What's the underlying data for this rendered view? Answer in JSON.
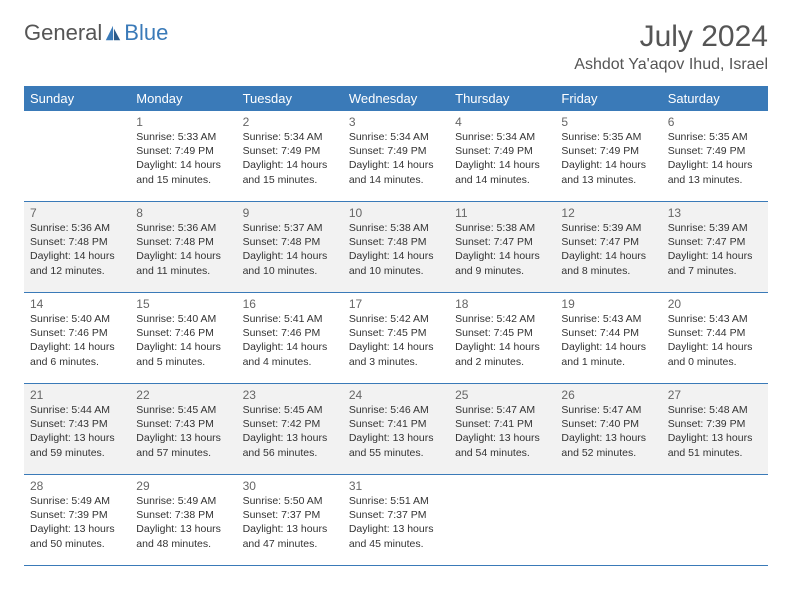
{
  "brand": {
    "general": "General",
    "blue": "Blue"
  },
  "title": "July 2024",
  "location": "Ashdot Ya'aqov Ihud, Israel",
  "theme": {
    "accent": "#3a7ab8",
    "header_text": "#ffffff",
    "body_text": "#333333",
    "muted_text": "#666666",
    "shaded_bg": "#f2f2f2",
    "border": "#3a7ab8"
  },
  "weekdays": [
    "Sunday",
    "Monday",
    "Tuesday",
    "Wednesday",
    "Thursday",
    "Friday",
    "Saturday"
  ],
  "weeks": [
    {
      "shaded": false,
      "days": [
        null,
        {
          "n": "1",
          "sunrise": "Sunrise: 5:33 AM",
          "sunset": "Sunset: 7:49 PM",
          "daylight": "Daylight: 14 hours and 15 minutes."
        },
        {
          "n": "2",
          "sunrise": "Sunrise: 5:34 AM",
          "sunset": "Sunset: 7:49 PM",
          "daylight": "Daylight: 14 hours and 15 minutes."
        },
        {
          "n": "3",
          "sunrise": "Sunrise: 5:34 AM",
          "sunset": "Sunset: 7:49 PM",
          "daylight": "Daylight: 14 hours and 14 minutes."
        },
        {
          "n": "4",
          "sunrise": "Sunrise: 5:34 AM",
          "sunset": "Sunset: 7:49 PM",
          "daylight": "Daylight: 14 hours and 14 minutes."
        },
        {
          "n": "5",
          "sunrise": "Sunrise: 5:35 AM",
          "sunset": "Sunset: 7:49 PM",
          "daylight": "Daylight: 14 hours and 13 minutes."
        },
        {
          "n": "6",
          "sunrise": "Sunrise: 5:35 AM",
          "sunset": "Sunset: 7:49 PM",
          "daylight": "Daylight: 14 hours and 13 minutes."
        }
      ]
    },
    {
      "shaded": true,
      "days": [
        {
          "n": "7",
          "sunrise": "Sunrise: 5:36 AM",
          "sunset": "Sunset: 7:48 PM",
          "daylight": "Daylight: 14 hours and 12 minutes."
        },
        {
          "n": "8",
          "sunrise": "Sunrise: 5:36 AM",
          "sunset": "Sunset: 7:48 PM",
          "daylight": "Daylight: 14 hours and 11 minutes."
        },
        {
          "n": "9",
          "sunrise": "Sunrise: 5:37 AM",
          "sunset": "Sunset: 7:48 PM",
          "daylight": "Daylight: 14 hours and 10 minutes."
        },
        {
          "n": "10",
          "sunrise": "Sunrise: 5:38 AM",
          "sunset": "Sunset: 7:48 PM",
          "daylight": "Daylight: 14 hours and 10 minutes."
        },
        {
          "n": "11",
          "sunrise": "Sunrise: 5:38 AM",
          "sunset": "Sunset: 7:47 PM",
          "daylight": "Daylight: 14 hours and 9 minutes."
        },
        {
          "n": "12",
          "sunrise": "Sunrise: 5:39 AM",
          "sunset": "Sunset: 7:47 PM",
          "daylight": "Daylight: 14 hours and 8 minutes."
        },
        {
          "n": "13",
          "sunrise": "Sunrise: 5:39 AM",
          "sunset": "Sunset: 7:47 PM",
          "daylight": "Daylight: 14 hours and 7 minutes."
        }
      ]
    },
    {
      "shaded": false,
      "days": [
        {
          "n": "14",
          "sunrise": "Sunrise: 5:40 AM",
          "sunset": "Sunset: 7:46 PM",
          "daylight": "Daylight: 14 hours and 6 minutes."
        },
        {
          "n": "15",
          "sunrise": "Sunrise: 5:40 AM",
          "sunset": "Sunset: 7:46 PM",
          "daylight": "Daylight: 14 hours and 5 minutes."
        },
        {
          "n": "16",
          "sunrise": "Sunrise: 5:41 AM",
          "sunset": "Sunset: 7:46 PM",
          "daylight": "Daylight: 14 hours and 4 minutes."
        },
        {
          "n": "17",
          "sunrise": "Sunrise: 5:42 AM",
          "sunset": "Sunset: 7:45 PM",
          "daylight": "Daylight: 14 hours and 3 minutes."
        },
        {
          "n": "18",
          "sunrise": "Sunrise: 5:42 AM",
          "sunset": "Sunset: 7:45 PM",
          "daylight": "Daylight: 14 hours and 2 minutes."
        },
        {
          "n": "19",
          "sunrise": "Sunrise: 5:43 AM",
          "sunset": "Sunset: 7:44 PM",
          "daylight": "Daylight: 14 hours and 1 minute."
        },
        {
          "n": "20",
          "sunrise": "Sunrise: 5:43 AM",
          "sunset": "Sunset: 7:44 PM",
          "daylight": "Daylight: 14 hours and 0 minutes."
        }
      ]
    },
    {
      "shaded": true,
      "days": [
        {
          "n": "21",
          "sunrise": "Sunrise: 5:44 AM",
          "sunset": "Sunset: 7:43 PM",
          "daylight": "Daylight: 13 hours and 59 minutes."
        },
        {
          "n": "22",
          "sunrise": "Sunrise: 5:45 AM",
          "sunset": "Sunset: 7:43 PM",
          "daylight": "Daylight: 13 hours and 57 minutes."
        },
        {
          "n": "23",
          "sunrise": "Sunrise: 5:45 AM",
          "sunset": "Sunset: 7:42 PM",
          "daylight": "Daylight: 13 hours and 56 minutes."
        },
        {
          "n": "24",
          "sunrise": "Sunrise: 5:46 AM",
          "sunset": "Sunset: 7:41 PM",
          "daylight": "Daylight: 13 hours and 55 minutes."
        },
        {
          "n": "25",
          "sunrise": "Sunrise: 5:47 AM",
          "sunset": "Sunset: 7:41 PM",
          "daylight": "Daylight: 13 hours and 54 minutes."
        },
        {
          "n": "26",
          "sunrise": "Sunrise: 5:47 AM",
          "sunset": "Sunset: 7:40 PM",
          "daylight": "Daylight: 13 hours and 52 minutes."
        },
        {
          "n": "27",
          "sunrise": "Sunrise: 5:48 AM",
          "sunset": "Sunset: 7:39 PM",
          "daylight": "Daylight: 13 hours and 51 minutes."
        }
      ]
    },
    {
      "shaded": false,
      "days": [
        {
          "n": "28",
          "sunrise": "Sunrise: 5:49 AM",
          "sunset": "Sunset: 7:39 PM",
          "daylight": "Daylight: 13 hours and 50 minutes."
        },
        {
          "n": "29",
          "sunrise": "Sunrise: 5:49 AM",
          "sunset": "Sunset: 7:38 PM",
          "daylight": "Daylight: 13 hours and 48 minutes."
        },
        {
          "n": "30",
          "sunrise": "Sunrise: 5:50 AM",
          "sunset": "Sunset: 7:37 PM",
          "daylight": "Daylight: 13 hours and 47 minutes."
        },
        {
          "n": "31",
          "sunrise": "Sunrise: 5:51 AM",
          "sunset": "Sunset: 7:37 PM",
          "daylight": "Daylight: 13 hours and 45 minutes."
        },
        null,
        null,
        null
      ]
    }
  ]
}
